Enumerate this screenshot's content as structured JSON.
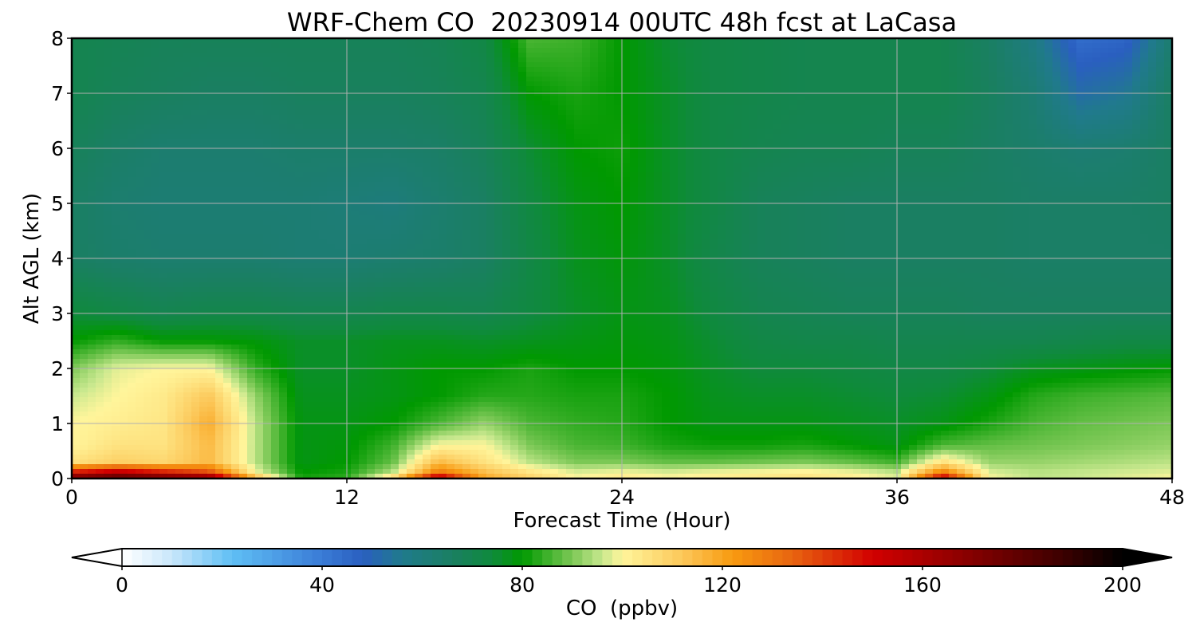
{
  "chart_data": {
    "type": "heatmap",
    "title": "WRF-Chem CO  20230914 00UTC 48h fcst at LaCasa",
    "xlabel": "Forecast Time (Hour)",
    "ylabel": "Alt AGL (km)",
    "xlim": [
      0,
      48
    ],
    "ylim": [
      0,
      8
    ],
    "xticks": [
      "0",
      "12",
      "24",
      "36",
      "48"
    ],
    "yticks": [
      "0",
      "1",
      "2",
      "3",
      "4",
      "5",
      "6",
      "7",
      "8"
    ],
    "grid": true,
    "x": [
      0,
      2,
      4,
      6,
      8,
      10,
      12,
      14,
      16,
      18,
      20,
      22,
      24,
      26,
      28,
      30,
      32,
      34,
      36,
      38,
      40,
      42,
      44,
      46,
      48
    ],
    "y": [
      0,
      0.1,
      0.3,
      0.6,
      1,
      1.5,
      2,
      2.5,
      3,
      4,
      5,
      6,
      7,
      8
    ],
    "z": [
      [
        178,
        185,
        180,
        175,
        120,
        82,
        84,
        110,
        165,
        120,
        110,
        100,
        103,
        100,
        102,
        104,
        105,
        102,
        98,
        160,
        100,
        95,
        96,
        98,
        100
      ],
      [
        150,
        160,
        150,
        140,
        100,
        80,
        82,
        95,
        130,
        115,
        105,
        98,
        100,
        98,
        100,
        101,
        102,
        100,
        96,
        130,
        98,
        95,
        96,
        97,
        98
      ],
      [
        105,
        110,
        108,
        115,
        95,
        78,
        80,
        88,
        115,
        105,
        95,
        90,
        90,
        88,
        88,
        89,
        90,
        88,
        85,
        105,
        92,
        92,
        93,
        94,
        95
      ],
      [
        100,
        105,
        105,
        115,
        95,
        78,
        79,
        85,
        100,
        100,
        90,
        86,
        85,
        82,
        81,
        81,
        82,
        80,
        78,
        86,
        88,
        89,
        90,
        91,
        92
      ],
      [
        100,
        102,
        104,
        118,
        95,
        78,
        78,
        80,
        86,
        92,
        86,
        84,
        83,
        80,
        78,
        78,
        78,
        77,
        76,
        78,
        82,
        86,
        88,
        89,
        90
      ],
      [
        96,
        100,
        103,
        112,
        92,
        77,
        77,
        78,
        80,
        83,
        83,
        82,
        82,
        80,
        77,
        76,
        76,
        75,
        74,
        75,
        78,
        83,
        85,
        86,
        87
      ],
      [
        90,
        98,
        100,
        100,
        84,
        76,
        76,
        78,
        80,
        80,
        82,
        80,
        80,
        79,
        76,
        74,
        74,
        73,
        72,
        72,
        74,
        77,
        78,
        79,
        80
      ],
      [
        80,
        84,
        80,
        80,
        79,
        76,
        76,
        77,
        77,
        76,
        77,
        78,
        79,
        78,
        75,
        72,
        71,
        71,
        70,
        70,
        70,
        70,
        71,
        72,
        72
      ],
      [
        74,
        72,
        70,
        71,
        71,
        70,
        70,
        71,
        71,
        70,
        73,
        76,
        78,
        77,
        73,
        70,
        69,
        68,
        68,
        68,
        67,
        67,
        67,
        67,
        67
      ],
      [
        66,
        64,
        63,
        63,
        63,
        62,
        62,
        63,
        64,
        66,
        72,
        77,
        79,
        76,
        71,
        68,
        67,
        66,
        66,
        66,
        66,
        65,
        65,
        65,
        65
      ],
      [
        66,
        63,
        62,
        62,
        62,
        62,
        61,
        60,
        63,
        66,
        73,
        78,
        80,
        76,
        72,
        68,
        67,
        66,
        66,
        66,
        66,
        65,
        65,
        65,
        66
      ],
      [
        68,
        65,
        63,
        63,
        63,
        64,
        64,
        64,
        65,
        68,
        75,
        80,
        81,
        76,
        72,
        70,
        69,
        69,
        68,
        68,
        66,
        64,
        62,
        63,
        66
      ],
      [
        70,
        68,
        67,
        66,
        66,
        67,
        67,
        67,
        68,
        70,
        80,
        82,
        80,
        76,
        72,
        71,
        70,
        70,
        70,
        70,
        67,
        62,
        52,
        55,
        66
      ],
      [
        70,
        69,
        68,
        68,
        68,
        68,
        68,
        68,
        69,
        72,
        86,
        85,
        80,
        75,
        72,
        71,
        70,
        70,
        70,
        70,
        66,
        58,
        44,
        46,
        63
      ]
    ],
    "colorbar": {
      "label": "CO  (ppbv)",
      "ticks": [
        "0",
        "40",
        "80",
        "120",
        "160",
        "200"
      ],
      "range": [
        0,
        200
      ],
      "extend": "both",
      "stops": [
        {
          "v": 0,
          "c": "#ffffff"
        },
        {
          "v": 10,
          "c": "#c8e6fa"
        },
        {
          "v": 22,
          "c": "#5fbff5"
        },
        {
          "v": 40,
          "c": "#3a7bd6"
        },
        {
          "v": 48,
          "c": "#2a5fc0"
        },
        {
          "v": 56,
          "c": "#207a8c"
        },
        {
          "v": 66,
          "c": "#1a7f62"
        },
        {
          "v": 74,
          "c": "#0f8a3c"
        },
        {
          "v": 80,
          "c": "#009900"
        },
        {
          "v": 90,
          "c": "#7cc856"
        },
        {
          "v": 96,
          "c": "#c8e88e"
        },
        {
          "v": 100,
          "c": "#fff59b"
        },
        {
          "v": 112,
          "c": "#fcc85a"
        },
        {
          "v": 122,
          "c": "#f89a10"
        },
        {
          "v": 134,
          "c": "#e86410"
        },
        {
          "v": 150,
          "c": "#d20000"
        },
        {
          "v": 168,
          "c": "#8c0000"
        },
        {
          "v": 188,
          "c": "#3c0000"
        },
        {
          "v": 200,
          "c": "#000000"
        }
      ]
    }
  }
}
